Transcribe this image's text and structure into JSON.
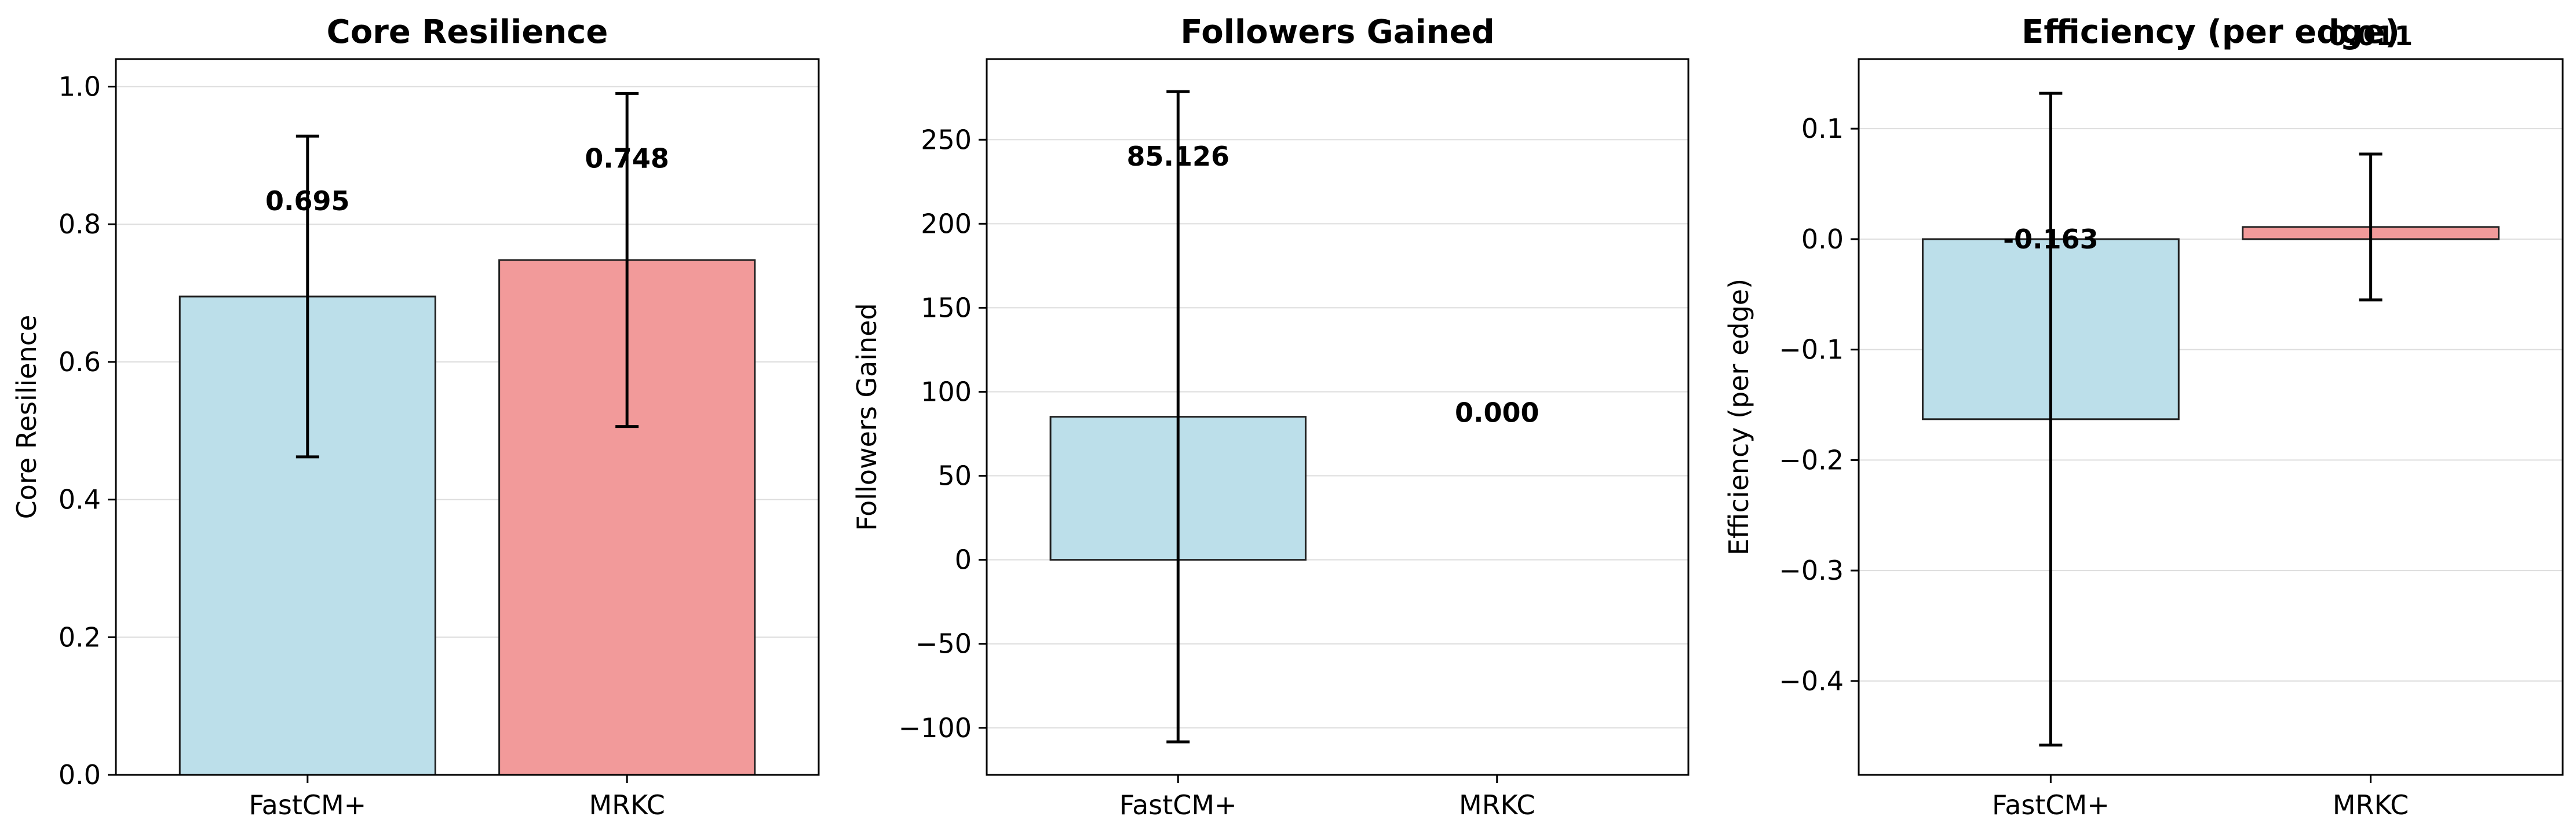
{
  "chart_data": [
    {
      "type": "bar",
      "title": "Core Resilience",
      "ylabel": "Core Resilience",
      "categories": [
        "FastCM+",
        "MRKC"
      ],
      "values": [
        0.695,
        0.748
      ],
      "errors": [
        0.233,
        0.242
      ],
      "value_labels": [
        "0.695",
        "0.748"
      ],
      "ylim": [
        0,
        1.04
      ],
      "yticks": [
        0.0,
        0.2,
        0.4,
        0.6,
        0.8,
        1.0
      ],
      "ytick_labels": [
        "0.0",
        "0.2",
        "0.4",
        "0.6",
        "0.8",
        "1.0"
      ],
      "grid": true
    },
    {
      "type": "bar",
      "title": "Followers Gained",
      "ylabel": "Followers Gained",
      "categories": [
        "FastCM+",
        "MRKC"
      ],
      "values": [
        85.126,
        0.0
      ],
      "errors": [
        193.5,
        0.0
      ],
      "value_labels": [
        "85.126",
        "0.000"
      ],
      "ylim": [
        -128,
        298
      ],
      "yticks": [
        -100,
        -50,
        0,
        50,
        100,
        150,
        200,
        250
      ],
      "ytick_labels": [
        "−100",
        "−50",
        "0",
        "50",
        "100",
        "150",
        "200",
        "250"
      ],
      "grid": true
    },
    {
      "type": "bar",
      "title": "Efficiency (per edge)",
      "ylabel": "Efficiency (per edge)",
      "categories": [
        "FastCM+",
        "MRKC"
      ],
      "values": [
        -0.163,
        0.011
      ],
      "errors": [
        0.295,
        0.066
      ],
      "value_labels": [
        "-0.163",
        "0.011"
      ],
      "ylim": [
        -0.485,
        0.163
      ],
      "yticks": [
        -0.4,
        -0.3,
        -0.2,
        -0.1,
        0.0,
        0.1
      ],
      "ytick_labels": [
        "−0.4",
        "−0.3",
        "−0.2",
        "−0.1",
        "0.0",
        "0.1"
      ],
      "grid": true
    }
  ],
  "colors": {
    "FastCM+": "#bcdfea",
    "MRKC": "#f29a9a"
  }
}
